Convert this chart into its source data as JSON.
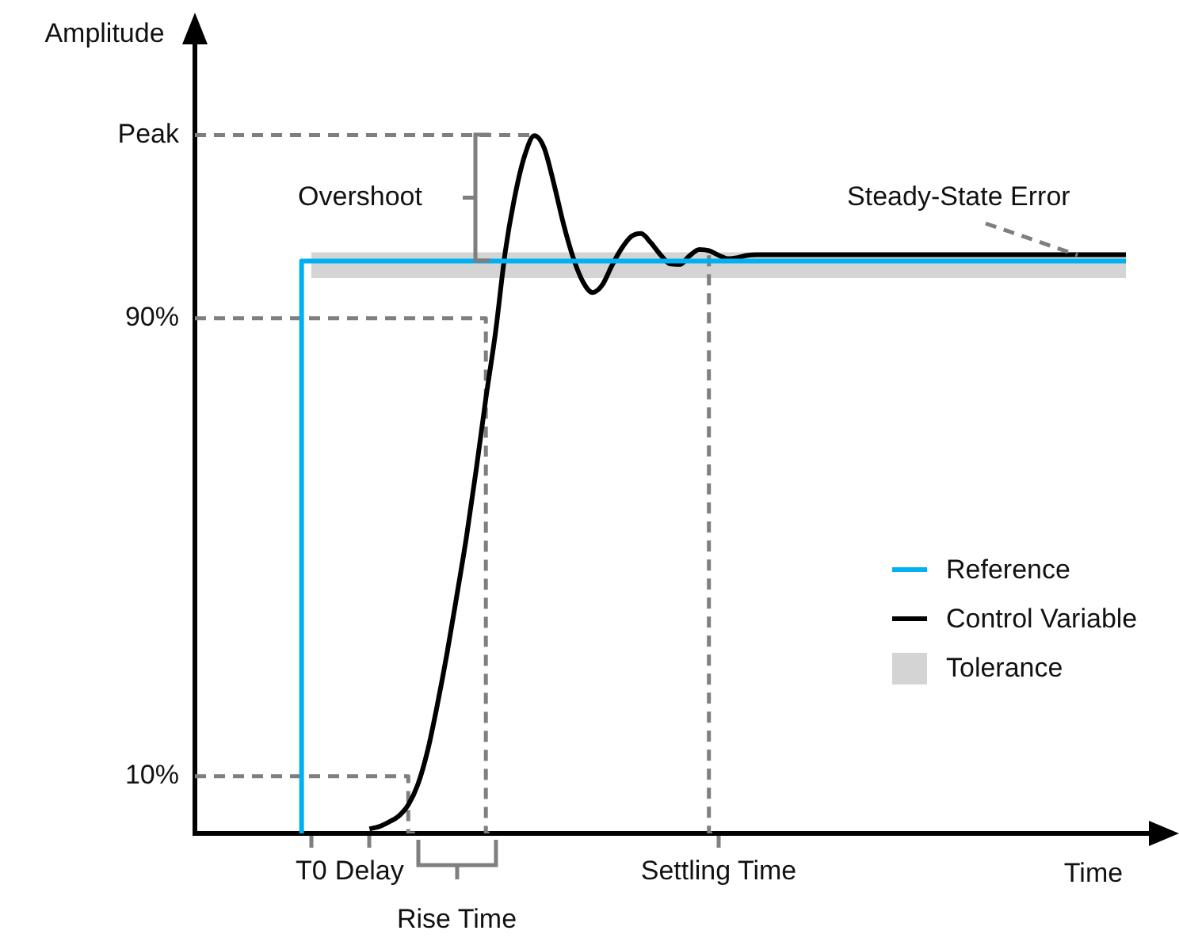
{
  "chart_data": {
    "type": "line",
    "xlabel": "Time",
    "ylabel": "Amplitude",
    "ylim": [
      0,
      140
    ],
    "categories": [
      null,
      null,
      null,
      null,
      null,
      null,
      null,
      null,
      null,
      null,
      null,
      null,
      "T0",
      null,
      null,
      null,
      null,
      null,
      "Delay",
      null,
      null,
      null,
      null,
      null,
      null,
      null,
      null,
      null,
      null,
      null,
      null,
      null,
      null,
      null,
      null,
      null,
      null,
      null,
      null,
      null,
      null,
      null,
      null,
      null,
      null,
      null,
      null,
      null,
      null,
      null,
      null,
      null,
      null,
      null,
      "Settling Time",
      null,
      null,
      null,
      null,
      null,
      null,
      null,
      null,
      null,
      null,
      null,
      null,
      null,
      null,
      null,
      null,
      null,
      null,
      null,
      null,
      null,
      null,
      null,
      null,
      null,
      null,
      null,
      null,
      null,
      null,
      null,
      null,
      null,
      null,
      null,
      null,
      null,
      null,
      null,
      null,
      null,
      null,
      null,
      null,
      null,
      null
    ],
    "yticks": [
      {
        "value": 10,
        "label": "10%"
      },
      {
        "value": 90,
        "label": "90%"
      },
      {
        "value": 122,
        "label": "Peak"
      }
    ],
    "marker": "none",
    "legend": "bottom right",
    "bands": [
      {
        "axis": "y",
        "from": 97,
        "to": 101.5,
        "label": "Tolerance",
        "color": "#d4d4d4"
      }
    ],
    "annotations": [
      "Overshoot",
      {
        "text": "Steady-State Error",
        "y": 101.1
      },
      "Rise Time"
    ],
    "series": [
      {
        "name": "Reference",
        "type": "step",
        "color": "#00b0f0",
        "values": [
          null,
          null,
          null,
          null,
          null,
          null,
          null,
          null,
          null,
          null,
          null,
          0,
          100,
          100,
          100,
          100,
          100,
          100,
          100,
          100,
          100,
          100,
          100,
          100,
          100,
          100,
          100,
          100,
          100,
          100,
          100,
          100,
          100,
          100,
          100,
          100,
          100,
          100,
          100,
          100,
          100,
          100,
          100,
          100,
          100,
          100,
          100,
          100,
          100,
          100,
          100,
          100,
          100,
          100,
          100,
          100,
          100,
          100,
          100,
          100,
          100,
          100,
          100,
          100,
          100,
          100,
          100,
          100,
          100,
          100,
          100,
          100,
          100,
          100,
          100,
          100,
          100,
          100,
          100,
          100,
          100,
          100,
          100,
          100,
          100,
          100,
          100,
          100,
          100,
          100,
          100,
          100,
          100,
          100,
          100,
          100,
          100,
          null,
          null,
          null,
          null
        ]
      },
      {
        "name": "Control Variable",
        "color": "#000000",
        "values": [
          null,
          null,
          null,
          null,
          null,
          null,
          null,
          null,
          null,
          null,
          null,
          null,
          null,
          null,
          null,
          null,
          null,
          null,
          0.8,
          1.2,
          2,
          3,
          5,
          8.6,
          14.5,
          22.5,
          31.5,
          41.5,
          51.8,
          63.5,
          76,
          87.6,
          101.6,
          111.4,
          118.4,
          121.9,
          119.8,
          113.6,
          106.5,
          100.6,
          96.4,
          94.5,
          95.8,
          99.2,
          102.2,
          104.3,
          104.8,
          103.2,
          101.1,
          99.5,
          99.4,
          100.9,
          102,
          101.8,
          101,
          100.4,
          100.6,
          101,
          101.1,
          101.1,
          101.1,
          101.1,
          101.1,
          101.1,
          101.1,
          101.1,
          101.1,
          101.1,
          101.1,
          101.1,
          101.1,
          101.1,
          101.1,
          101.1,
          101.1,
          101.1,
          101.1,
          101.1,
          101.1,
          101.1,
          101.1,
          101.1,
          101.1,
          101.1,
          101.1,
          101.1,
          101.1,
          101.1,
          101.1,
          101.1,
          101.1,
          101.1,
          101.1,
          101.1,
          101.1,
          101.1,
          101.1,
          null,
          null,
          null,
          null
        ]
      },
      {
        "type": "step",
        "color": "#7f7f7f",
        "line_style": "dashed",
        "values": [
          10,
          10,
          10,
          10,
          10,
          10,
          10,
          10,
          10,
          10,
          10,
          10,
          10,
          10,
          10,
          10,
          10,
          10,
          10,
          10,
          10,
          10,
          10,
          0,
          null,
          null,
          null,
          null,
          null,
          null,
          null,
          null,
          null,
          null,
          null,
          null,
          null,
          null,
          null,
          null,
          null,
          null,
          null,
          null,
          null,
          null,
          null,
          null,
          null,
          null,
          null,
          null,
          null,
          null,
          null,
          null,
          null,
          null,
          null,
          null,
          null,
          null,
          null,
          null,
          null,
          null,
          null,
          null,
          null,
          null,
          null,
          null,
          null,
          null,
          null,
          null,
          null,
          null,
          null,
          null,
          null,
          null,
          null,
          null,
          null,
          null,
          null,
          null,
          null,
          null,
          null,
          null,
          null,
          null,
          null,
          null,
          null,
          null,
          null,
          null,
          null
        ]
      },
      {
        "type": "step",
        "color": "#7f7f7f",
        "line_style": "dashed",
        "values": [
          90,
          90,
          90,
          90,
          90,
          90,
          90,
          90,
          90,
          90,
          90,
          90,
          90,
          90,
          90,
          90,
          90,
          90,
          90,
          90,
          90,
          90,
          90,
          90,
          90,
          90,
          90,
          90,
          90,
          90,
          90,
          0,
          null,
          null,
          null,
          null,
          null,
          null,
          null,
          null,
          null,
          null,
          null,
          null,
          null,
          null,
          null,
          null,
          null,
          null,
          null,
          null,
          null,
          null,
          null,
          null,
          null,
          null,
          null,
          null,
          null,
          null,
          null,
          null,
          null,
          null,
          null,
          null,
          null,
          null,
          null,
          null,
          null,
          null,
          null,
          null,
          null,
          null,
          null,
          null,
          null,
          null,
          null,
          null,
          null,
          null,
          null,
          null,
          null,
          null,
          null,
          null,
          null,
          null,
          null,
          null,
          null,
          null,
          null,
          null,
          null
        ]
      },
      {
        "color": "#7f7f7f",
        "line_style": "dashed",
        "values": [
          122,
          122,
          122,
          122,
          122,
          122,
          122,
          122,
          122,
          122,
          122,
          122,
          122,
          122,
          122,
          122,
          122,
          122,
          122,
          122,
          122,
          122,
          122,
          122,
          122,
          122,
          122,
          122,
          122,
          122,
          122,
          122,
          122,
          122,
          122,
          122,
          null,
          null,
          null,
          null,
          null,
          null,
          null,
          null,
          null,
          null,
          null,
          null,
          null,
          null,
          null,
          null,
          null,
          null,
          null,
          null,
          null,
          null,
          null,
          null,
          null,
          null,
          null,
          null,
          null,
          null,
          null,
          null,
          null,
          null,
          null,
          null,
          null,
          null,
          null,
          null,
          null,
          null,
          null,
          null,
          null,
          null,
          null,
          null,
          null,
          null,
          null,
          null,
          null,
          null,
          null,
          null,
          null,
          null,
          null,
          null,
          null,
          null,
          null,
          null,
          null
        ]
      },
      {
        "type": "step",
        "color": "#7f7f7f",
        "line_style": "dashed",
        "values": [
          null,
          null,
          null,
          null,
          null,
          null,
          null,
          null,
          null,
          null,
          null,
          null,
          null,
          null,
          null,
          null,
          null,
          null,
          null,
          null,
          null,
          null,
          null,
          null,
          null,
          null,
          null,
          null,
          null,
          null,
          null,
          null,
          null,
          null,
          null,
          null,
          null,
          null,
          null,
          null,
          null,
          null,
          null,
          null,
          null,
          null,
          null,
          null,
          null,
          null,
          null,
          null,
          null,
          101,
          0,
          null,
          null,
          null,
          null,
          null,
          null,
          null,
          null,
          null,
          null,
          null,
          null,
          null,
          null,
          null,
          null,
          null,
          null,
          null,
          null,
          null,
          null,
          null,
          null,
          null,
          null,
          null,
          null,
          null,
          null,
          null,
          null,
          null,
          null,
          null,
          null,
          null,
          null,
          null,
          null,
          null,
          null,
          null,
          null,
          null,
          null
        ]
      }
    ]
  }
}
